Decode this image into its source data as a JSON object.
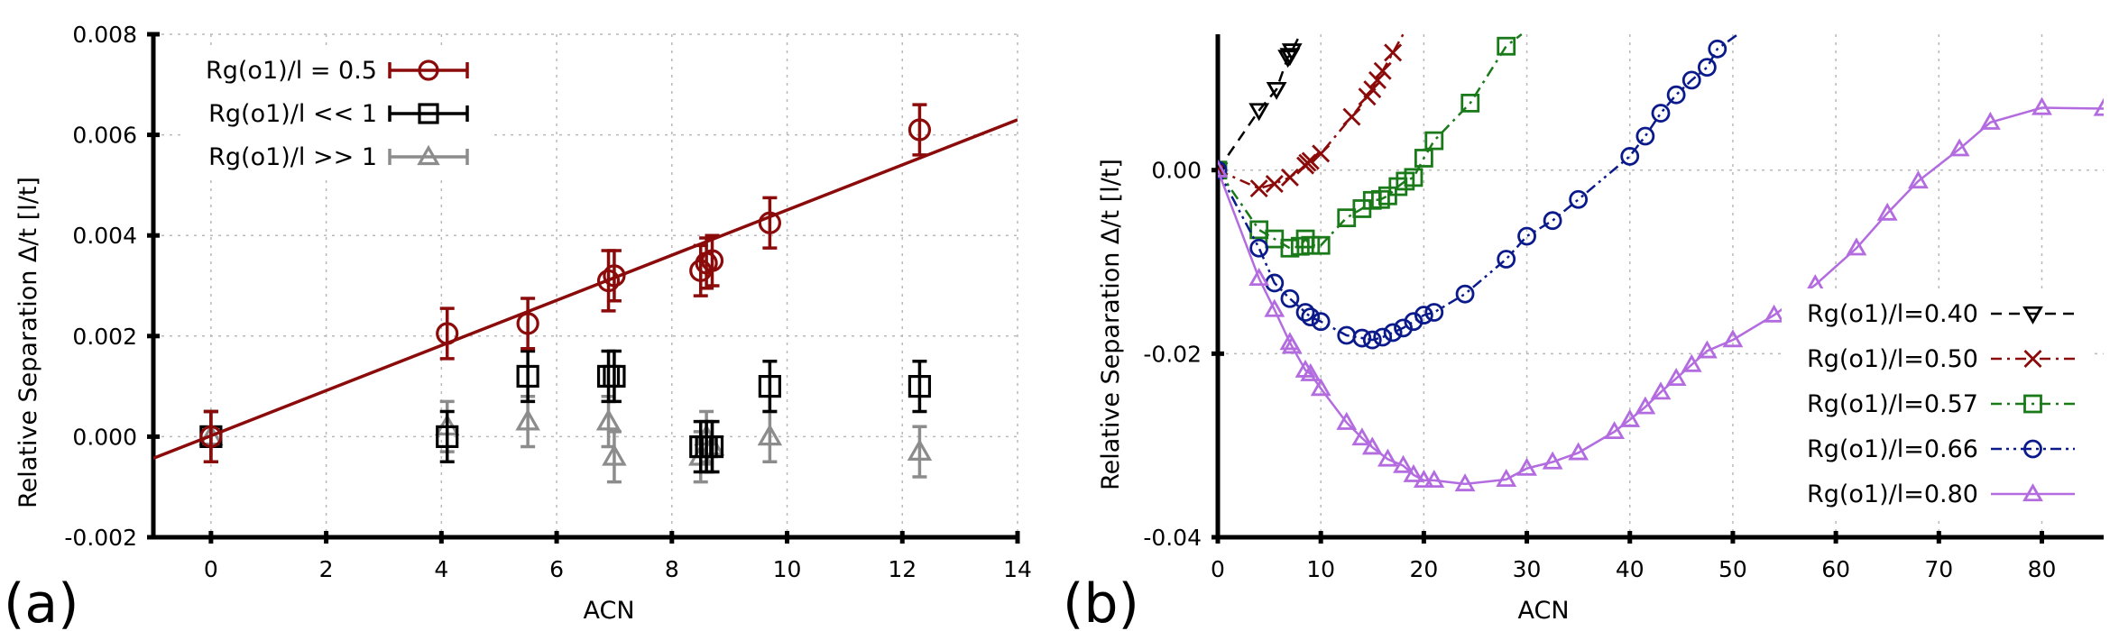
{
  "chart_data": [
    {
      "panel": "(a)",
      "type": "scatter",
      "xlabel": "ACN",
      "ylabel": "Relative Separation Δ/t [l/t]",
      "xlim": [
        -1,
        14
      ],
      "ylim": [
        -0.002,
        0.008
      ],
      "xticks": [
        0,
        2,
        4,
        6,
        8,
        10,
        12,
        14
      ],
      "xtick_labels": [
        "0",
        "2",
        "4",
        "6",
        "8",
        "10",
        "12",
        "14"
      ],
      "yticks": [
        -0.002,
        0.0,
        0.002,
        0.004,
        0.006,
        0.008
      ],
      "ytick_labels": [
        "-0.002",
        "0.000",
        "0.002",
        "0.004",
        "0.006",
        "0.008"
      ],
      "grid": true,
      "legend_position": "top-left",
      "legend": [
        {
          "label": "Rg(o1)/l = 0.5",
          "color": "#8b0a0a",
          "marker": "circle"
        },
        {
          "label": "Rg(o1)/l << 1",
          "color": "#000000",
          "marker": "square"
        },
        {
          "label": "Rg(o1)/l >> 1",
          "color": "#8c8c8c",
          "marker": "triangle"
        }
      ],
      "series": [
        {
          "name": "Rg(o1)/l = 0.5",
          "color": "#8b0a0a",
          "marker": "circle",
          "x": [
            0,
            4.1,
            5.5,
            6.9,
            7.0,
            8.5,
            8.6,
            8.7,
            9.7,
            12.3
          ],
          "y": [
            0.0,
            0.00205,
            0.00225,
            0.0031,
            0.0032,
            0.0033,
            0.00345,
            0.0035,
            0.00425,
            0.0061
          ],
          "err": [
            0.0005,
            0.0005,
            0.0005,
            0.0006,
            0.0005,
            0.0005,
            0.0005,
            0.0005,
            0.0005,
            0.0005
          ],
          "fit_line": {
            "x": [
              -1,
              14
            ],
            "y": [
              -0.00043,
              0.0063
            ]
          }
        },
        {
          "name": "Rg(o1)/l << 1",
          "color": "#000000",
          "marker": "square",
          "x": [
            0,
            4.1,
            5.5,
            6.9,
            7.0,
            8.5,
            8.6,
            8.7,
            9.7,
            12.3
          ],
          "y": [
            0.0,
            0.0,
            0.0012,
            0.0012,
            0.0012,
            -0.0002,
            -0.0002,
            -0.0002,
            0.001,
            0.001
          ],
          "err": [
            0.0005,
            0.0005,
            0.0005,
            0.0005,
            0.0005,
            0.0005,
            0.0005,
            0.0005,
            0.0005,
            0.0005
          ]
        },
        {
          "name": "Rg(o1)/l >> 1",
          "color": "#8c8c8c",
          "marker": "triangle",
          "x": [
            0,
            4.1,
            5.5,
            6.9,
            7.0,
            8.5,
            8.6,
            8.7,
            9.7,
            12.3
          ],
          "y": [
            0.0,
            0.0002,
            0.0003,
            0.0003,
            -0.0004,
            -0.0004,
            0.0,
            -0.0002,
            0.0,
            -0.0003
          ],
          "err": [
            0.0005,
            0.0005,
            0.0005,
            0.0005,
            0.0005,
            0.0005,
            0.0005,
            0.0005,
            0.0005,
            0.0005
          ]
        }
      ]
    },
    {
      "panel": "(b)",
      "type": "line",
      "xlabel": "ACN",
      "ylabel": "Relative Separation Δ/t [l/t]",
      "xlim": [
        0,
        86
      ],
      "ylim": [
        -0.04,
        0.0148
      ],
      "xticks": [
        0,
        10,
        20,
        30,
        40,
        50,
        60,
        70,
        80
      ],
      "xtick_labels": [
        "0",
        "10",
        "20",
        "30",
        "40",
        "50",
        "60",
        "70",
        "80"
      ],
      "yticks": [
        -0.04,
        -0.02,
        0.0
      ],
      "ytick_labels": [
        "-0.04",
        "-0.02",
        "0.00"
      ],
      "grid": true,
      "legend_position": "bottom-right",
      "legend": [
        {
          "label": "Rg(o1)/l=0.40",
          "color": "#000000",
          "marker": "triangle-down",
          "dash": "dashed"
        },
        {
          "label": "Rg(o1)/l=0.50",
          "color": "#8b0a0a",
          "marker": "x",
          "dash": "dashdot"
        },
        {
          "label": "Rg(o1)/l=0.57",
          "color": "#1a7a1a",
          "marker": "square",
          "dash": "dashdot"
        },
        {
          "label": "Rg(o1)/l=0.66",
          "color": "#0a1a8a",
          "marker": "circle",
          "dash": "dashdotdot"
        },
        {
          "label": "Rg(o1)/l=0.80",
          "color": "#b36be0",
          "marker": "triangle",
          "dash": "solid"
        }
      ],
      "series": [
        {
          "name": "Rg(o1)/l=0.40",
          "color": "#000000",
          "marker": "triangle-down",
          "dash": "dashed",
          "x": [
            0,
            4,
            5.7,
            6.8,
            7.0,
            7.2,
            8.0
          ],
          "y": [
            0.0,
            0.0065,
            0.0088,
            0.0123,
            0.0125,
            0.013,
            0.0148
          ]
        },
        {
          "name": "Rg(o1)/l=0.50",
          "color": "#8b0a0a",
          "marker": "x",
          "dash": "dashdot",
          "x": [
            0,
            4,
            5.5,
            7,
            8.5,
            8.7,
            9,
            10,
            13,
            14.5,
            15,
            15.5,
            16,
            17,
            18
          ],
          "y": [
            0.0,
            -0.002,
            -0.0015,
            -0.0008,
            0.0005,
            0.0008,
            0.001,
            0.0018,
            0.0058,
            0.008,
            0.0088,
            0.0098,
            0.0108,
            0.0128,
            0.0148
          ]
        },
        {
          "name": "Rg(o1)/l=0.57",
          "color": "#1a7a1a",
          "marker": "square",
          "dash": "dashdot",
          "x": [
            0,
            4,
            5.5,
            7,
            8,
            8.5,
            9,
            10,
            12.5,
            14,
            15,
            15.8,
            16.5,
            17.5,
            18.2,
            19,
            20,
            21,
            24.5,
            28,
            29.5
          ],
          "y": [
            0.0,
            -0.0065,
            -0.0075,
            -0.0085,
            -0.0083,
            -0.0075,
            -0.0082,
            -0.0082,
            -0.0052,
            -0.0042,
            -0.0033,
            -0.0032,
            -0.0028,
            -0.0018,
            -0.0012,
            -0.0008,
            0.0013,
            0.0032,
            0.0073,
            0.0135,
            0.0148
          ]
        },
        {
          "name": "Rg(o1)/l=0.66",
          "color": "#0a1a8a",
          "marker": "circle",
          "dash": "dashdotdot",
          "x": [
            0,
            4,
            5.5,
            7,
            8.5,
            9,
            10,
            12.5,
            14,
            15,
            16,
            17,
            18,
            19,
            20,
            21,
            24,
            28,
            30,
            32.5,
            35,
            40,
            41.5,
            43,
            44.5,
            46,
            47.5,
            48.5,
            50.5
          ],
          "y": [
            0.0,
            -0.0085,
            -0.0123,
            -0.014,
            -0.0155,
            -0.016,
            -0.0165,
            -0.018,
            -0.0183,
            -0.0185,
            -0.0182,
            -0.0177,
            -0.0172,
            -0.0165,
            -0.0158,
            -0.0155,
            -0.0135,
            -0.0097,
            -0.0072,
            -0.0055,
            -0.0032,
            0.0015,
            0.0037,
            0.0062,
            0.0082,
            0.0098,
            0.0112,
            0.0132,
            0.0148
          ]
        },
        {
          "name": "Rg(o1)/l=0.80",
          "color": "#b36be0",
          "marker": "triangle",
          "dash": "solid",
          "x": [
            0,
            4,
            5.5,
            7,
            7.2,
            8.5,
            9,
            10,
            12.5,
            14,
            15,
            16.5,
            18,
            19,
            20,
            21,
            24,
            28,
            30,
            32.5,
            35,
            38.5,
            40,
            41.5,
            43,
            44.5,
            46,
            47.5,
            50,
            54,
            58,
            62,
            65,
            68,
            72,
            75,
            80,
            86
          ],
          "y": [
            0.0,
            -0.0118,
            -0.0152,
            -0.0188,
            -0.0192,
            -0.0218,
            -0.0222,
            -0.0238,
            -0.0275,
            -0.0292,
            -0.0302,
            -0.0315,
            -0.0322,
            -0.0332,
            -0.0338,
            -0.0338,
            -0.0342,
            -0.0337,
            -0.0325,
            -0.0318,
            -0.0308,
            -0.0285,
            -0.0272,
            -0.0258,
            -0.0242,
            -0.0227,
            -0.0212,
            -0.0197,
            -0.0185,
            -0.0158,
            -0.0125,
            -0.0085,
            -0.0047,
            -0.0012,
            0.0023,
            0.0052,
            0.0068,
            0.0067
          ]
        }
      ]
    }
  ]
}
